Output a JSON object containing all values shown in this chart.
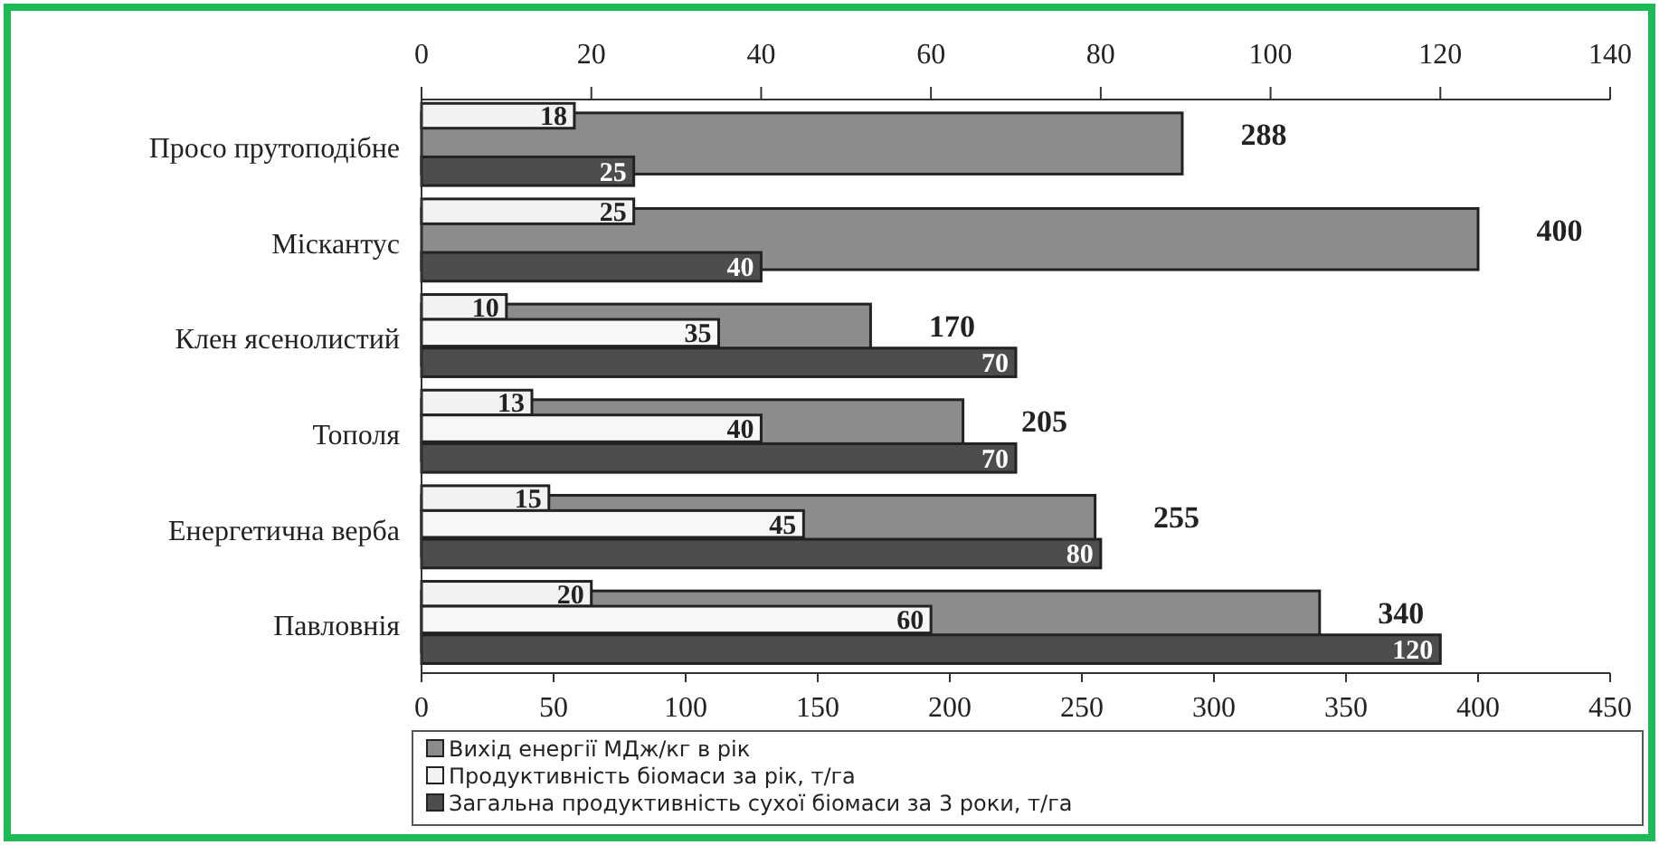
{
  "chart_data": {
    "type": "bar",
    "orientation": "horizontal",
    "categories": [
      "Просо прутоподібне",
      "Міскантус",
      "Клен ясенолистий",
      "Тополя",
      "Енергетична верба",
      "Павловнія"
    ],
    "series": [
      {
        "name": "Вихід енергії МДж/кг в рік",
        "color": "#8c8c8c",
        "values": [
          288,
          400,
          170,
          205,
          255,
          340
        ]
      },
      {
        "name": "Продуктивність біомаси за рік, т/га",
        "color": "#f2f2f2",
        "axis": "x2",
        "values": [
          18,
          25,
          10,
          13,
          15,
          20
        ]
      },
      {
        "color": "#f7f7f7",
        "axis": "x2",
        "values": [
          null,
          null,
          35,
          40,
          45,
          60
        ]
      },
      {
        "name": "Загальна продуктивність сухої біомаси за 3 роки, т/га",
        "color": "#4d4d4d",
        "axis": "x2",
        "values": [
          25,
          40,
          70,
          70,
          80,
          120
        ]
      }
    ],
    "xlim": [
      0,
      450
    ],
    "xticks": [
      0,
      50,
      100,
      150,
      200,
      250,
      300,
      350,
      400,
      450
    ],
    "x2lim": [
      0,
      140
    ],
    "x2ticks": [
      0,
      20,
      40,
      60,
      80,
      100,
      120,
      140
    ],
    "data_labels": true,
    "legend": "bottom",
    "grid": false
  }
}
